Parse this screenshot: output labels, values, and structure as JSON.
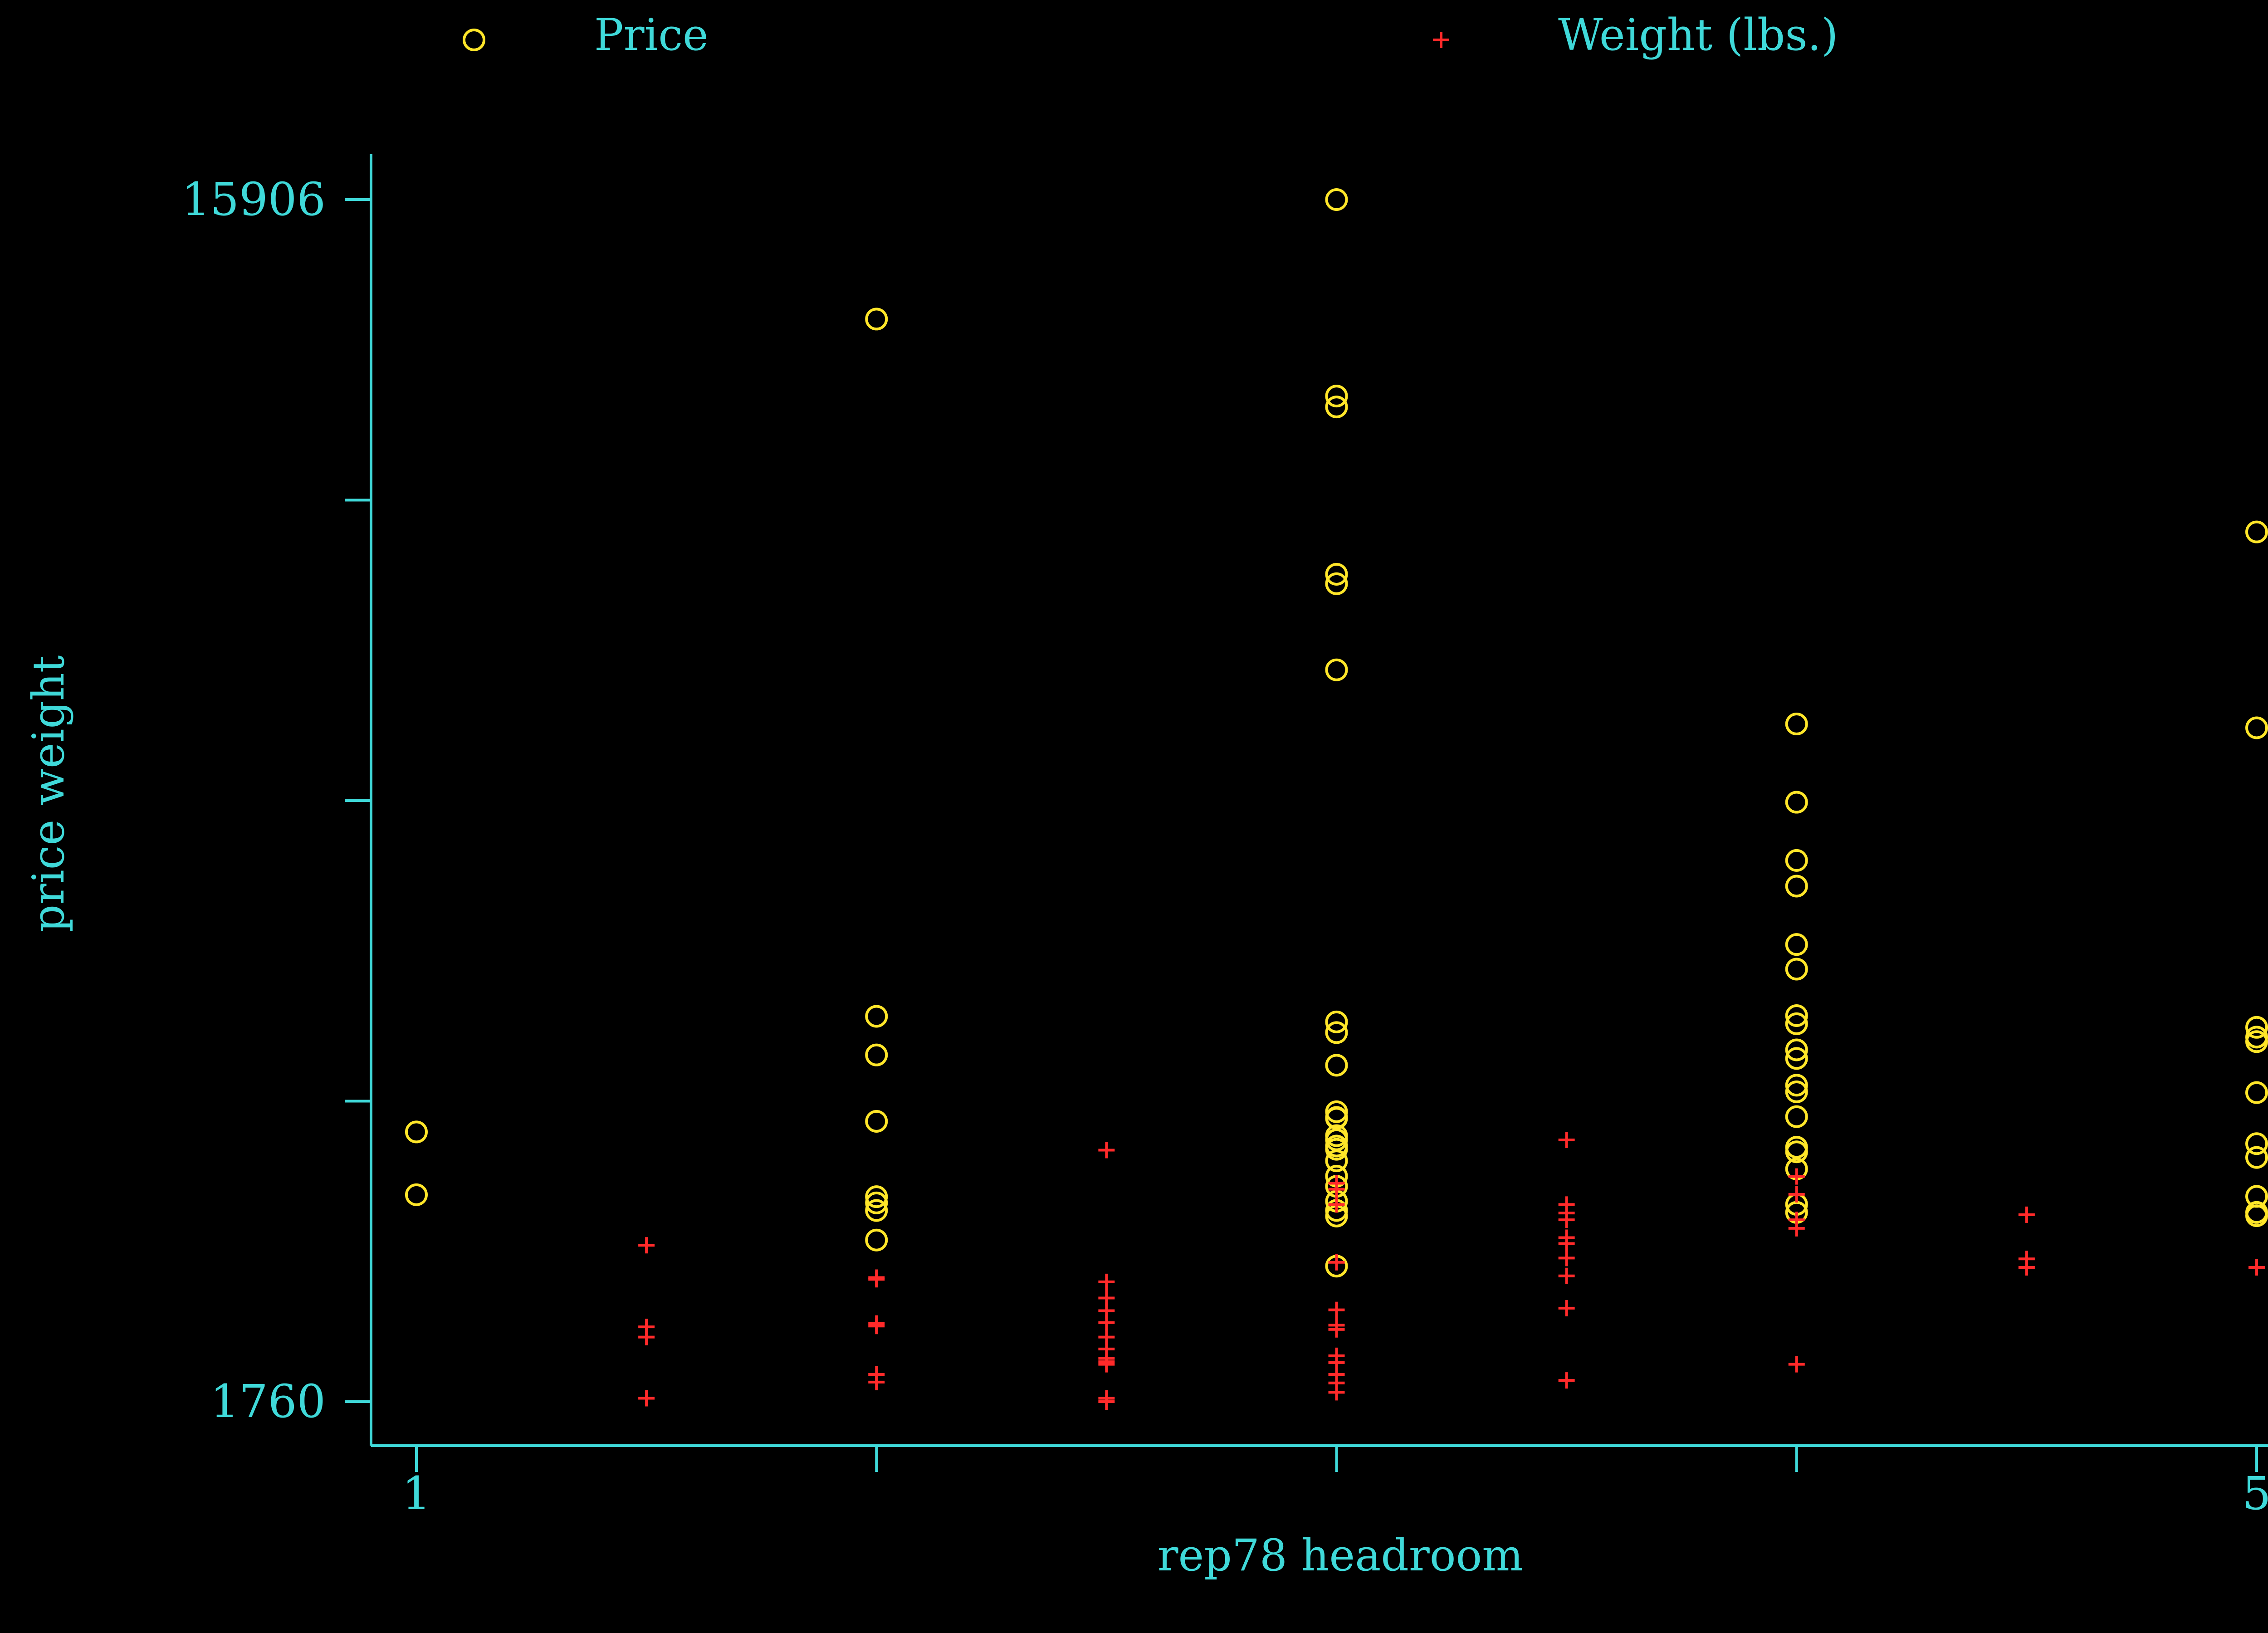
{
  "chart_data": {
    "type": "scatter",
    "xlabel": "rep78 headroom",
    "ylabel": "price weight",
    "xlim": [
      1,
      5
    ],
    "ylim": [
      1760,
      15906
    ],
    "x_tick_labels": [
      {
        "value": 1,
        "label": "1"
      },
      {
        "value": 5,
        "label": "5"
      }
    ],
    "x_ticks": [
      1,
      2,
      3,
      4,
      5
    ],
    "y_tick_labels": [
      {
        "value": 15906,
        "label": "15906"
      },
      {
        "value": 1760,
        "label": "1760"
      }
    ],
    "y_ticks": [
      1760,
      5296.5,
      8833,
      12369.5,
      15906
    ],
    "legend": {
      "position": "top"
    },
    "colors": {
      "background": "#000000",
      "axis": "#3fd9d9",
      "price": "#ffe629",
      "weight": "#ff2a2a"
    },
    "series": [
      {
        "name": "Price",
        "marker": "circle",
        "color": "#ffe629",
        "points": [
          [
            1,
            4934
          ],
          [
            1,
            4195
          ],
          [
            2,
            14500
          ],
          [
            2,
            6295
          ],
          [
            2,
            5840
          ],
          [
            2,
            5059
          ],
          [
            2,
            4172
          ],
          [
            2,
            4099
          ],
          [
            2,
            4010
          ],
          [
            2,
            3662
          ],
          [
            3,
            15906
          ],
          [
            3,
            13594
          ],
          [
            3,
            13466
          ],
          [
            3,
            11385
          ],
          [
            3,
            11497
          ],
          [
            3,
            10372
          ],
          [
            3,
            6229
          ],
          [
            3,
            6103
          ],
          [
            3,
            5719
          ],
          [
            3,
            5172
          ],
          [
            3,
            5104
          ],
          [
            3,
            5095
          ],
          [
            3,
            4890
          ],
          [
            3,
            4842
          ],
          [
            3,
            4768
          ],
          [
            3,
            4730
          ],
          [
            3,
            4594
          ],
          [
            3,
            4414
          ],
          [
            3,
            4294
          ],
          [
            3,
            4119
          ],
          [
            3,
            4011
          ],
          [
            3,
            3944
          ],
          [
            3,
            3355
          ],
          [
            4,
            9735
          ],
          [
            4,
            8814
          ],
          [
            4,
            8129
          ],
          [
            4,
            7827
          ],
          [
            4,
            7140
          ],
          [
            4,
            6850
          ],
          [
            4,
            6303
          ],
          [
            4,
            6207
          ],
          [
            4,
            5900
          ],
          [
            4,
            5799
          ],
          [
            4,
            5484
          ],
          [
            4,
            5406
          ],
          [
            4,
            5114
          ],
          [
            4,
            4754
          ],
          [
            4,
            4700
          ],
          [
            4,
            4499
          ],
          [
            4,
            4082
          ],
          [
            4,
            3987
          ],
          [
            5,
            11995
          ],
          [
            5,
            9690
          ],
          [
            5,
            6165
          ],
          [
            5,
            6050
          ],
          [
            5,
            5997
          ],
          [
            5,
            5397
          ],
          [
            5,
            4796
          ],
          [
            5,
            4634
          ],
          [
            5,
            4176
          ],
          [
            5,
            3987
          ],
          [
            5,
            3948
          ]
        ]
      },
      {
        "name": "Weight (lbs.)",
        "marker": "plus",
        "color": "#ff2a2a",
        "points": [
          [
            1.5,
            3600
          ],
          [
            1.5,
            2640
          ],
          [
            1.5,
            2520
          ],
          [
            1.5,
            1800
          ],
          [
            2,
            3220
          ],
          [
            2,
            3200
          ],
          [
            2,
            2680
          ],
          [
            2,
            2650
          ],
          [
            2,
            2080
          ],
          [
            2,
            1990
          ],
          [
            2.5,
            4720
          ],
          [
            2.5,
            3170
          ],
          [
            2.5,
            2980
          ],
          [
            2.5,
            2830
          ],
          [
            2.5,
            2690
          ],
          [
            2.5,
            2520
          ],
          [
            2.5,
            2380
          ],
          [
            2.5,
            2270
          ],
          [
            2.5,
            2230
          ],
          [
            2.5,
            2200
          ],
          [
            2.5,
            1800
          ],
          [
            2.5,
            1760
          ],
          [
            3,
            4330
          ],
          [
            3,
            4260
          ],
          [
            3,
            4080
          ],
          [
            3,
            3400
          ],
          [
            3,
            2840
          ],
          [
            3,
            2660
          ],
          [
            3,
            2610
          ],
          [
            3,
            2300
          ],
          [
            3,
            2220
          ],
          [
            3,
            2080
          ],
          [
            3,
            1980
          ],
          [
            3,
            1870
          ],
          [
            3.5,
            4840
          ],
          [
            3.5,
            4080
          ],
          [
            3.5,
            3980
          ],
          [
            3.5,
            3900
          ],
          [
            3.5,
            3690
          ],
          [
            3.5,
            3620
          ],
          [
            3.5,
            3450
          ],
          [
            3.5,
            3240
          ],
          [
            3.5,
            2860
          ],
          [
            3.5,
            2010
          ],
          [
            4,
            4410
          ],
          [
            4,
            4200
          ],
          [
            4,
            3900
          ],
          [
            4,
            3800
          ],
          [
            4,
            2200
          ],
          [
            4.5,
            3960
          ],
          [
            4.5,
            3440
          ],
          [
            4.5,
            3340
          ],
          [
            5,
            3340
          ]
        ]
      }
    ]
  }
}
